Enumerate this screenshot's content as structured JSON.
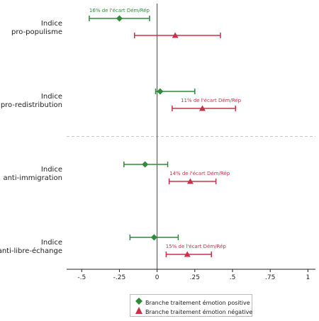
{
  "chart_data": {
    "type": "dot-and-whisker",
    "xlim": [
      -0.6,
      1.05
    ],
    "xticks": [
      {
        "v": -0.5,
        "label": "-.5"
      },
      {
        "v": -0.25,
        "label": "-.25"
      },
      {
        "v": 0,
        "label": "0"
      },
      {
        "v": 0.25,
        "label": ".25"
      },
      {
        "v": 0.5,
        "label": ".5"
      },
      {
        "v": 0.75,
        "label": ".75"
      },
      {
        "v": 1,
        "label": "1"
      }
    ],
    "categories": [
      {
        "line1": "Indice",
        "line2": "pro-populisme"
      },
      {
        "line1": "Indice",
        "line2": "pro-redistribution"
      },
      {
        "line1": "Indice",
        "line2": "anti-immigration"
      },
      {
        "line1": "Indice",
        "line2": "anti-libre-échange"
      }
    ],
    "series": [
      {
        "name": "Branche traitement émotion positive",
        "color": "#2e8b3a",
        "marker": "diamond",
        "points": [
          {
            "est": -0.25,
            "lo": -0.45,
            "hi": -0.05
          },
          {
            "est": 0.02,
            "lo": -0.01,
            "hi": 0.25
          },
          {
            "est": -0.08,
            "lo": -0.22,
            "hi": 0.07
          },
          {
            "est": -0.02,
            "lo": -0.18,
            "hi": 0.14
          }
        ]
      },
      {
        "name": "Branche traitement émotion négative",
        "color": "#c8324a",
        "marker": "triangle",
        "points": [
          {
            "est": 0.12,
            "lo": -0.15,
            "hi": 0.42
          },
          {
            "est": 0.3,
            "lo": 0.1,
            "hi": 0.52
          },
          {
            "est": 0.22,
            "lo": 0.08,
            "hi": 0.39
          },
          {
            "est": 0.2,
            "lo": 0.06,
            "hi": 0.36
          }
        ]
      }
    ],
    "annotations": [
      {
        "category": 0,
        "series": 0,
        "text": "16% de l'écart Dém/Rép"
      },
      {
        "category": 1,
        "series": 1,
        "text": "11% de l'écart Dém/Rép"
      },
      {
        "category": 2,
        "series": 1,
        "text": "14% de l'écart Dém/Rép"
      },
      {
        "category": 3,
        "series": 1,
        "text": "15% de l'écart Dém/Rép"
      }
    ],
    "separator_after_category": 1,
    "legend": {
      "placement": "bottom-center"
    }
  }
}
